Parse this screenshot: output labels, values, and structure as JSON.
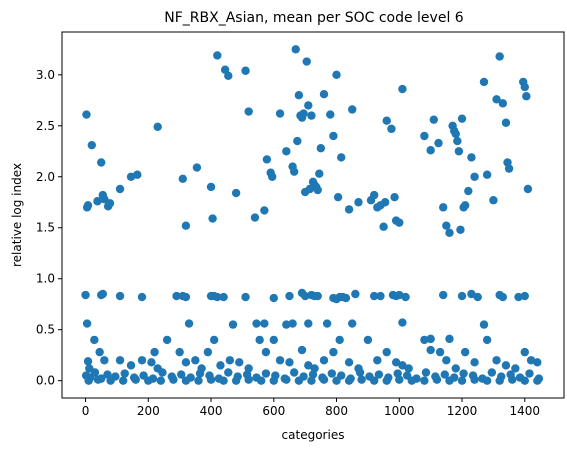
{
  "chart_data": {
    "type": "scatter",
    "title": "NF_RBX_Asian, mean per SOC code level 6",
    "xlabel": "categories",
    "ylabel": "relative log index",
    "xlim": [
      -75,
      1525
    ],
    "ylim": [
      -0.17,
      3.42
    ],
    "xticks": [
      0,
      200,
      400,
      600,
      800,
      1000,
      1200,
      1400
    ],
    "yticks": [
      0.0,
      0.5,
      1.0,
      1.5,
      2.0,
      2.5,
      3.0
    ],
    "xtick_labels": [
      "0",
      "200",
      "400",
      "600",
      "800",
      "1000",
      "1200",
      "1400"
    ],
    "ytick_labels": [
      "0.0",
      "0.5",
      "1.0",
      "1.5",
      "2.0",
      "2.5",
      "3.0"
    ],
    "grid": false,
    "marker_color": "#1f77b4",
    "x": [
      3,
      5,
      8,
      20,
      38,
      50,
      55,
      60,
      72,
      78,
      110,
      145,
      165,
      230,
      310,
      320,
      355,
      400,
      405,
      420,
      445,
      455,
      480,
      510,
      520,
      540,
      570,
      578,
      590,
      595,
      620,
      640,
      660,
      665,
      670,
      675,
      680,
      685,
      690,
      695,
      700,
      705,
      710,
      715,
      720,
      725,
      730,
      735,
      740,
      745,
      750,
      760,
      780,
      790,
      800,
      805,
      815,
      840,
      850,
      870,
      910,
      920,
      930,
      940,
      950,
      955,
      960,
      975,
      985,
      990,
      1000,
      1010,
      1080,
      1100,
      1110,
      1125,
      1140,
      1150,
      1160,
      1170,
      1175,
      1180,
      1185,
      1190,
      1195,
      1200,
      1205,
      1210,
      1220,
      1230,
      1240,
      1270,
      1280,
      1300,
      1310,
      1320,
      1330,
      1340,
      1345,
      1350,
      1395,
      1400,
      1405,
      1410,
      0,
      5,
      50,
      55,
      110,
      180,
      290,
      310,
      320,
      330,
      400,
      410,
      420,
      440,
      470,
      510,
      545,
      570,
      600,
      640,
      650,
      660,
      690,
      700,
      710,
      720,
      730,
      740,
      770,
      790,
      800,
      810,
      820,
      830,
      850,
      860,
      920,
      940,
      980,
      990,
      1000,
      1010,
      1020,
      1100,
      1140,
      1160,
      1200,
      1230,
      1250,
      1270,
      1320,
      1330,
      1380,
      1400,
      8,
      12,
      28,
      45,
      60,
      110,
      145,
      180,
      210,
      220,
      230,
      260,
      300,
      320,
      350,
      370,
      390,
      410,
      430,
      460,
      490,
      520,
      555,
      575,
      600,
      620,
      650,
      690,
      710,
      730,
      760,
      790,
      810,
      840,
      870,
      900,
      930,
      960,
      990,
      1010,
      1030,
      1080,
      1100,
      1130,
      1150,
      1180,
      1210,
      1240,
      1280,
      1310,
      1340,
      1370,
      1400,
      1420,
      1440,
      2,
      15,
      30,
      50,
      70,
      95,
      125,
      155,
      185,
      215,
      245,
      275,
      305,
      335,
      365,
      395,
      425,
      455,
      485,
      515,
      545,
      575,
      605,
      635,
      665,
      695,
      725,
      755,
      785,
      815,
      845,
      875,
      905,
      935,
      965,
      995,
      1025,
      1055,
      1085,
      1115,
      1145,
      1175,
      1205,
      1235,
      1265,
      1295,
      1325,
      1355,
      1385,
      1415,
      1445,
      10,
      40,
      80,
      120,
      160,
      200,
      240,
      280,
      320,
      360,
      400,
      440,
      480,
      520,
      560,
      600,
      640,
      680,
      720,
      760,
      800,
      840,
      880,
      920,
      960,
      1000,
      1040,
      1080,
      1120,
      1160,
      1200,
      1240,
      1280,
      1320,
      1360,
      1400,
      1440
    ],
    "y": [
      2.61,
      1.7,
      1.72,
      2.31,
      1.76,
      2.14,
      1.82,
      1.78,
      1.71,
      1.74,
      1.88,
      2.0,
      2.02,
      2.49,
      1.98,
      1.52,
      2.09,
      1.9,
      1.59,
      3.19,
      3.05,
      2.99,
      1.84,
      3.04,
      2.64,
      1.6,
      1.67,
      2.17,
      2.04,
      2.0,
      2.62,
      2.25,
      2.1,
      2.05,
      3.25,
      2.35,
      2.8,
      2.6,
      2.58,
      2.62,
      1.85,
      3.13,
      2.7,
      1.88,
      2.6,
      1.95,
      1.92,
      1.9,
      1.87,
      2.03,
      2.28,
      2.81,
      2.61,
      2.4,
      3.0,
      1.8,
      2.19,
      1.68,
      2.66,
      1.75,
      1.77,
      1.82,
      1.7,
      1.72,
      1.51,
      1.75,
      2.55,
      2.47,
      1.8,
      1.57,
      1.55,
      2.86,
      2.4,
      2.26,
      2.56,
      2.33,
      1.7,
      1.52,
      1.45,
      2.5,
      2.45,
      2.42,
      2.35,
      2.25,
      1.48,
      2.57,
      1.7,
      1.72,
      1.86,
      2.19,
      2.0,
      2.93,
      2.02,
      1.77,
      2.76,
      3.18,
      2.72,
      2.53,
      2.14,
      2.08,
      2.93,
      2.88,
      2.79,
      1.88,
      0.84,
      0.56,
      0.84,
      0.85,
      0.83,
      0.82,
      0.83,
      0.83,
      0.82,
      0.56,
      0.83,
      0.83,
      0.82,
      0.82,
      0.55,
      0.82,
      0.56,
      0.56,
      0.81,
      0.55,
      0.83,
      0.56,
      0.86,
      0.83,
      0.56,
      0.84,
      0.83,
      0.83,
      0.56,
      0.81,
      0.8,
      0.82,
      0.82,
      0.81,
      0.56,
      0.85,
      0.83,
      0.83,
      0.84,
      0.83,
      0.84,
      0.57,
      0.82,
      0.41,
      0.84,
      0.41,
      0.83,
      0.85,
      0.82,
      0.55,
      0.84,
      0.82,
      0.82,
      0.83,
      0.19,
      0.12,
      0.4,
      0.28,
      0.2,
      0.2,
      0.15,
      0.2,
      0.18,
      0.28,
      0.12,
      0.4,
      0.28,
      0.18,
      0.2,
      0.12,
      0.28,
      0.4,
      0.15,
      0.2,
      0.18,
      0.12,
      0.4,
      0.28,
      0.4,
      0.2,
      0.18,
      0.3,
      0.15,
      0.12,
      0.2,
      0.28,
      0.4,
      0.18,
      0.12,
      0.4,
      0.2,
      0.28,
      0.18,
      0.15,
      0.12,
      0.4,
      0.3,
      0.28,
      0.2,
      0.12,
      0.28,
      0.18,
      0.4,
      0.2,
      0.15,
      0.12,
      0.28,
      0.2,
      0.18,
      0.05,
      0.03,
      0.08,
      0.02,
      0.06,
      0.04,
      0.07,
      0.03,
      0.05,
      0.02,
      0.08,
      0.04,
      0.06,
      0.03,
      0.07,
      0.05,
      0.02,
      0.08,
      0.04,
      0.06,
      0.03,
      0.07,
      0.05,
      0.02,
      0.08,
      0.04,
      0.06,
      0.03,
      0.07,
      0.05,
      0.02,
      0.08,
      0.04,
      0.06,
      0.03,
      0.07,
      0.05,
      0.02,
      0.08,
      0.04,
      0.06,
      0.03,
      0.07,
      0.05,
      0.02,
      0.08,
      0.04,
      0.06,
      0.03,
      0.07,
      0.02,
      0.0,
      0.01,
      0.0,
      0.0,
      0.01,
      0.0,
      0.0,
      0.01,
      0.0,
      0.0,
      0.01,
      0.0,
      0.0,
      0.01,
      0.0,
      0.0,
      0.01,
      0.0,
      0.0,
      0.01,
      0.0,
      0.0,
      0.01,
      0.0,
      0.0,
      0.01,
      0.0,
      0.0,
      0.01,
      0.0,
      0.0,
      0.01,
      0.0,
      0.0,
      0.01,
      0.0,
      0.0
    ]
  }
}
